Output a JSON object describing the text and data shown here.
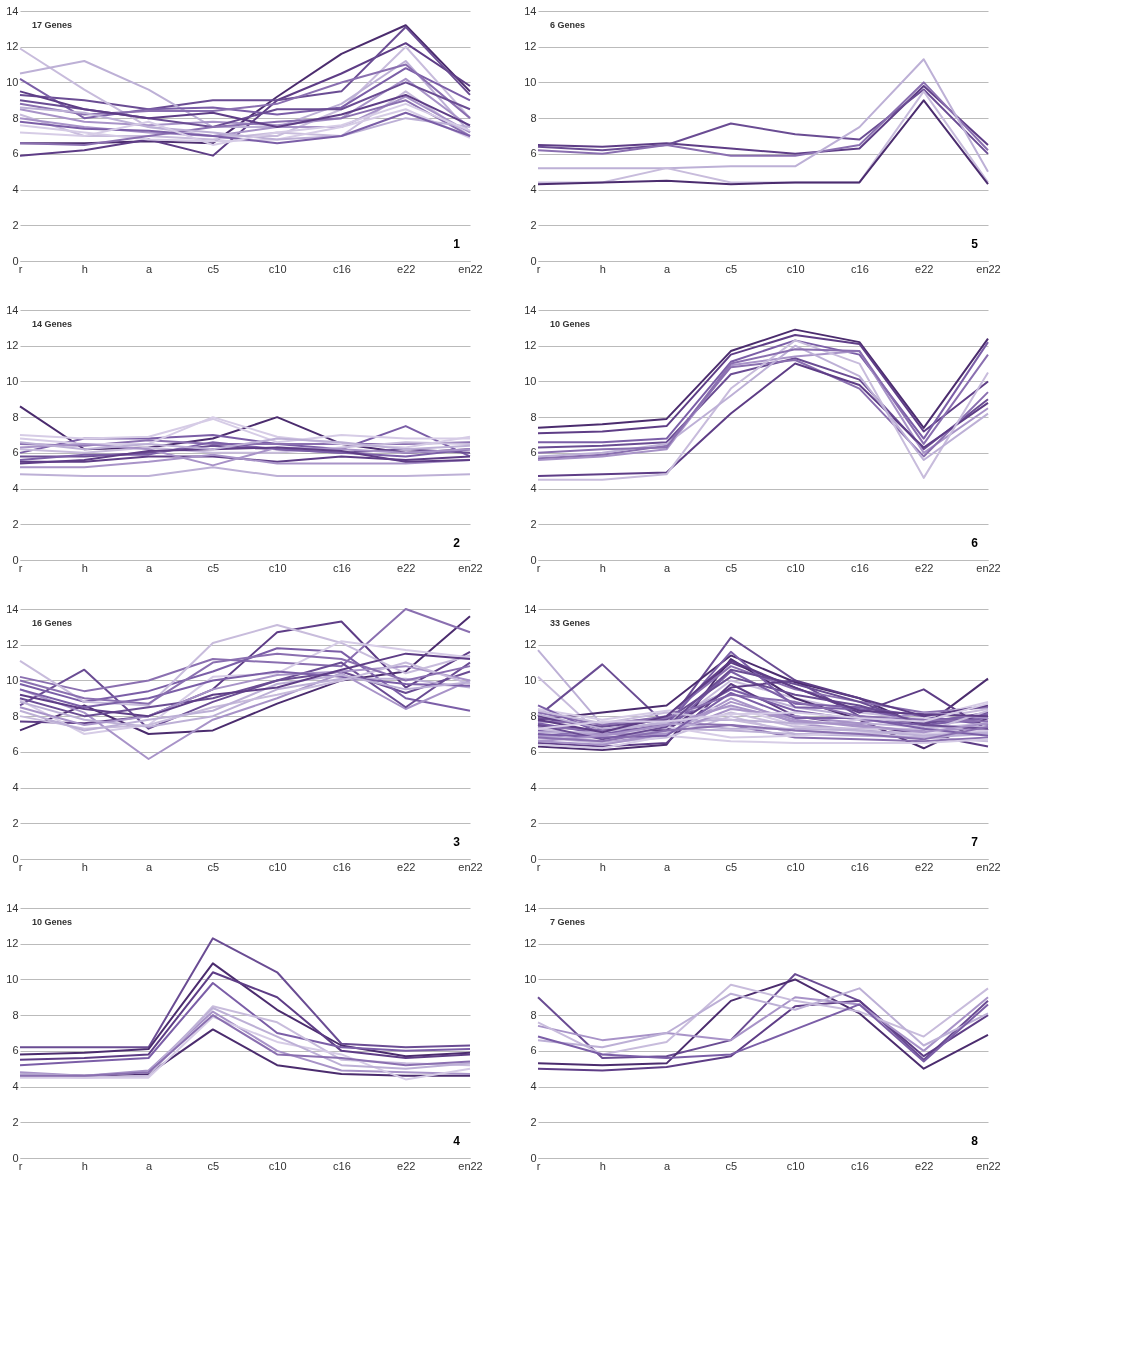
{
  "chart_data": [
    {
      "type": "line",
      "categories": [
        "r",
        "h",
        "a",
        "c5",
        "c10",
        "c16",
        "e22",
        "en22"
      ],
      "ylim": [
        0,
        14
      ],
      "yticks": [
        0,
        2,
        4,
        6,
        8,
        10,
        12,
        14
      ],
      "grid": "y",
      "legend": false,
      "annotations": [
        "17 Genes",
        "1"
      ],
      "series": [
        {
          "color": "#4b2c6e",
          "values": [
            6.6,
            6.6,
            6.7,
            6.6,
            9.2,
            11.6,
            13.2,
            9.5
          ]
        },
        {
          "color": "#5e3d86",
          "values": [
            5.9,
            6.2,
            6.8,
            5.9,
            9.0,
            10.5,
            12.2,
            9.8
          ]
        },
        {
          "color": "#6a4c93",
          "values": [
            9.3,
            9.0,
            8.5,
            9.0,
            9.0,
            9.5,
            13.1,
            9.3
          ]
        },
        {
          "color": "#c8bcdc",
          "values": [
            11.9,
            9.6,
            7.5,
            7.0,
            7.0,
            8.5,
            12.0,
            8.0
          ]
        },
        {
          "color": "#bdb0d6",
          "values": [
            10.5,
            11.2,
            9.6,
            7.5,
            7.5,
            8.8,
            11.2,
            7.2
          ]
        },
        {
          "color": "#7b5ea7",
          "values": [
            10.2,
            8.0,
            8.5,
            8.6,
            8.2,
            8.6,
            10.8,
            9.0
          ]
        },
        {
          "color": "#8a6fb0",
          "values": [
            8.8,
            8.2,
            8.4,
            8.4,
            8.8,
            10.0,
            11.0,
            8.0
          ]
        },
        {
          "color": "#a893c8",
          "values": [
            8.5,
            7.8,
            7.6,
            7.8,
            7.6,
            8.0,
            10.2,
            7.5
          ]
        },
        {
          "color": "#c8bcdc",
          "values": [
            8.2,
            7.0,
            7.0,
            6.8,
            7.2,
            7.0,
            9.5,
            7.0
          ]
        },
        {
          "color": "#6a4c93",
          "values": [
            9.0,
            8.5,
            8.0,
            7.5,
            8.5,
            8.5,
            10.0,
            8.5
          ]
        },
        {
          "color": "#a893c8",
          "values": [
            8.0,
            7.5,
            7.2,
            7.0,
            7.5,
            7.5,
            9.2,
            7.2
          ]
        },
        {
          "color": "#d6cce6",
          "values": [
            7.6,
            7.2,
            6.8,
            6.7,
            6.8,
            7.5,
            8.5,
            6.9
          ]
        },
        {
          "color": "#8a6fb0",
          "values": [
            6.6,
            6.5,
            7.0,
            7.5,
            7.8,
            8.0,
            9.0,
            7.0
          ]
        },
        {
          "color": "#bdb0d6",
          "values": [
            8.6,
            8.3,
            7.5,
            7.2,
            6.8,
            7.0,
            8.0,
            7.5
          ]
        },
        {
          "color": "#7b5ea7",
          "values": [
            7.8,
            7.4,
            7.3,
            7.0,
            6.6,
            7.0,
            8.3,
            7.0
          ]
        },
        {
          "color": "#5e3d86",
          "values": [
            9.5,
            8.5,
            8.0,
            8.3,
            7.5,
            8.2,
            9.3,
            7.6
          ]
        },
        {
          "color": "#d6cce6",
          "values": [
            7.2,
            7.0,
            7.8,
            6.5,
            7.2,
            7.6,
            8.8,
            7.3
          ]
        }
      ]
    },
    {
      "type": "line",
      "categories": [
        "r",
        "h",
        "a",
        "c5",
        "c10",
        "c16",
        "e22",
        "en22"
      ],
      "ylim": [
        0,
        14
      ],
      "yticks": [
        0,
        2,
        4,
        6,
        8,
        10,
        12,
        14
      ],
      "grid": "y",
      "legend": false,
      "annotations": [
        "6 Genes",
        "5"
      ],
      "series": [
        {
          "color": "#5e3d86",
          "values": [
            6.5,
            6.4,
            6.6,
            6.3,
            6.0,
            6.3,
            9.8,
            6.5
          ]
        },
        {
          "color": "#6a4c93",
          "values": [
            6.4,
            6.2,
            6.5,
            7.7,
            7.1,
            6.8,
            9.6,
            6.0
          ]
        },
        {
          "color": "#8a6fb0",
          "values": [
            6.2,
            6.0,
            6.5,
            5.9,
            5.9,
            6.5,
            10.0,
            6.2
          ]
        },
        {
          "color": "#bdb0d6",
          "values": [
            5.2,
            5.2,
            5.2,
            5.3,
            5.3,
            7.5,
            11.3,
            5.0
          ]
        },
        {
          "color": "#c8bcdc",
          "values": [
            4.4,
            4.4,
            5.2,
            4.4,
            4.4,
            4.4,
            9.5,
            4.4
          ]
        },
        {
          "color": "#4b2c6e",
          "values": [
            4.3,
            4.4,
            4.5,
            4.3,
            4.4,
            4.4,
            9.0,
            4.3
          ]
        }
      ]
    },
    {
      "type": "line",
      "categories": [
        "r",
        "h",
        "a",
        "c5",
        "c10",
        "c16",
        "e22",
        "en22"
      ],
      "ylim": [
        0,
        14
      ],
      "yticks": [
        0,
        2,
        4,
        6,
        8,
        10,
        12,
        14
      ],
      "grid": "y",
      "legend": false,
      "annotations": [
        "14 Genes",
        "2"
      ],
      "series": [
        {
          "color": "#4b2c6e",
          "values": [
            8.6,
            6.2,
            6.3,
            6.8,
            8.0,
            6.5,
            6.0,
            6.2
          ]
        },
        {
          "color": "#7b5ea7",
          "values": [
            6.0,
            6.8,
            6.8,
            7.0,
            6.5,
            6.2,
            7.5,
            5.8
          ]
        },
        {
          "color": "#5e3d86",
          "values": [
            5.5,
            5.5,
            5.8,
            5.8,
            5.5,
            5.8,
            5.6,
            5.8
          ]
        },
        {
          "color": "#d6cce6",
          "values": [
            7.0,
            6.8,
            6.9,
            7.9,
            6.6,
            7.0,
            6.8,
            6.8
          ]
        },
        {
          "color": "#bdb0d6",
          "values": [
            4.8,
            4.7,
            4.7,
            5.2,
            4.7,
            4.7,
            4.7,
            4.8
          ]
        },
        {
          "color": "#a893c8",
          "values": [
            5.2,
            5.2,
            5.5,
            5.9,
            5.4,
            5.4,
            5.4,
            5.6
          ]
        },
        {
          "color": "#8a6fb0",
          "values": [
            6.5,
            6.4,
            6.7,
            6.5,
            6.5,
            6.5,
            6.5,
            6.6
          ]
        },
        {
          "color": "#6a4c93",
          "values": [
            5.8,
            5.8,
            6.0,
            6.4,
            6.2,
            6.0,
            6.2,
            6.0
          ]
        },
        {
          "color": "#c8bcdc",
          "values": [
            6.2,
            6.0,
            6.3,
            6.0,
            6.0,
            6.3,
            6.6,
            6.5
          ]
        },
        {
          "color": "#d6cce6",
          "values": [
            6.8,
            6.5,
            6.5,
            8.0,
            6.9,
            6.5,
            6.3,
            6.9
          ]
        },
        {
          "color": "#7b5ea7",
          "values": [
            5.6,
            5.9,
            5.9,
            6.6,
            6.2,
            6.0,
            5.8,
            6.2
          ]
        },
        {
          "color": "#a893c8",
          "values": [
            6.3,
            6.5,
            6.2,
            5.3,
            6.3,
            6.2,
            6.0,
            6.2
          ]
        },
        {
          "color": "#5e3d86",
          "values": [
            5.4,
            5.6,
            6.1,
            6.2,
            6.3,
            6.1,
            5.5,
            5.6
          ]
        },
        {
          "color": "#bdb0d6",
          "values": [
            6.6,
            6.2,
            6.5,
            6.2,
            6.8,
            6.6,
            6.2,
            6.4
          ]
        }
      ]
    },
    {
      "type": "line",
      "categories": [
        "r",
        "h",
        "a",
        "c5",
        "c10",
        "c16",
        "e22",
        "en22"
      ],
      "ylim": [
        0,
        14
      ],
      "yticks": [
        0,
        2,
        4,
        6,
        8,
        10,
        12,
        14
      ],
      "grid": "y",
      "legend": false,
      "annotations": [
        "10 Genes",
        "6"
      ],
      "series": [
        {
          "color": "#4b2c6e",
          "values": [
            7.4,
            7.6,
            7.9,
            11.7,
            12.9,
            12.2,
            7.4,
            12.4
          ]
        },
        {
          "color": "#5e3d86",
          "values": [
            7.1,
            7.2,
            7.5,
            11.5,
            12.6,
            12.1,
            7.2,
            10.0
          ]
        },
        {
          "color": "#7b5ea7",
          "values": [
            6.6,
            6.6,
            6.8,
            11.1,
            12.3,
            11.5,
            6.8,
            12.2
          ]
        },
        {
          "color": "#6a4c93",
          "values": [
            6.3,
            6.4,
            6.6,
            10.4,
            11.3,
            10.1,
            6.2,
            9.0
          ]
        },
        {
          "color": "#a893c8",
          "values": [
            5.6,
            5.8,
            6.2,
            10.9,
            11.4,
            11.7,
            6.0,
            8.5
          ]
        },
        {
          "color": "#8a6fb0",
          "values": [
            5.7,
            5.9,
            6.4,
            10.8,
            11.2,
            9.6,
            5.8,
            9.4
          ]
        },
        {
          "color": "#5e3d86",
          "values": [
            4.7,
            4.8,
            4.9,
            8.2,
            11.0,
            9.8,
            6.3,
            8.8
          ]
        },
        {
          "color": "#c8bcdc",
          "values": [
            4.5,
            4.5,
            4.8,
            9.6,
            12.3,
            11.0,
            4.6,
            10.5
          ]
        },
        {
          "color": "#bdb0d6",
          "values": [
            5.8,
            6.0,
            6.5,
            9.2,
            12.0,
            10.3,
            5.6,
            8.2
          ]
        },
        {
          "color": "#8a6fb0",
          "values": [
            6.0,
            6.2,
            6.3,
            11.0,
            11.8,
            11.7,
            6.5,
            11.5
          ]
        }
      ]
    },
    {
      "type": "line",
      "categories": [
        "r",
        "h",
        "a",
        "c5",
        "c10",
        "c16",
        "e22",
        "en22"
      ],
      "ylim": [
        0,
        14
      ],
      "yticks": [
        0,
        2,
        4,
        6,
        8,
        10,
        12,
        14
      ],
      "grid": "y",
      "legend": false,
      "annotations": [
        "16 Genes",
        "3"
      ],
      "series": [
        {
          "color": "#4b2c6e",
          "values": [
            7.2,
            8.6,
            7.0,
            7.2,
            8.7,
            10.0,
            10.5,
            13.6
          ]
        },
        {
          "color": "#5e3d86",
          "values": [
            7.7,
            7.6,
            8.0,
            9.5,
            12.7,
            13.3,
            9.6,
            11.6
          ]
        },
        {
          "color": "#6a4c93",
          "values": [
            8.6,
            10.6,
            7.3,
            8.8,
            10.0,
            10.5,
            9.3,
            10.5
          ]
        },
        {
          "color": "#8a6fb0",
          "values": [
            10.2,
            9.4,
            10.0,
            11.2,
            11.0,
            10.8,
            14.0,
            12.7
          ]
        },
        {
          "color": "#7b5ea7",
          "values": [
            9.8,
            8.8,
            9.4,
            10.5,
            11.8,
            11.6,
            9.0,
            8.3
          ]
        },
        {
          "color": "#c8bcdc",
          "values": [
            11.1,
            8.8,
            8.6,
            12.1,
            13.1,
            12.1,
            10.4,
            11.4
          ]
        },
        {
          "color": "#d6cce6",
          "values": [
            8.9,
            7.0,
            7.5,
            10.2,
            10.4,
            12.2,
            11.7,
            11.3
          ]
        },
        {
          "color": "#a893c8",
          "values": [
            9.5,
            8.2,
            5.6,
            7.8,
            9.0,
            10.4,
            8.4,
            10.0
          ]
        },
        {
          "color": "#bdb0d6",
          "values": [
            8.8,
            7.8,
            7.4,
            8.0,
            9.5,
            10.1,
            10.1,
            9.6
          ]
        },
        {
          "color": "#6a4c93",
          "values": [
            9.0,
            8.0,
            8.5,
            9.0,
            10.0,
            11.0,
            8.5,
            11.0
          ]
        },
        {
          "color": "#a893c8",
          "values": [
            8.5,
            7.5,
            8.0,
            9.5,
            10.3,
            10.5,
            10.8,
            10.0
          ]
        },
        {
          "color": "#7b5ea7",
          "values": [
            9.5,
            8.5,
            9.0,
            10.0,
            10.5,
            10.2,
            9.8,
            9.7
          ]
        },
        {
          "color": "#c8bcdc",
          "values": [
            8.0,
            7.3,
            7.5,
            8.5,
            9.2,
            10.0,
            11.0,
            9.8
          ]
        },
        {
          "color": "#8a6fb0",
          "values": [
            10.0,
            9.0,
            8.7,
            11.0,
            11.5,
            11.2,
            10.0,
            10.8
          ]
        },
        {
          "color": "#bdb0d6",
          "values": [
            8.3,
            7.2,
            7.8,
            8.3,
            9.8,
            10.3,
            9.5,
            9.9
          ]
        },
        {
          "color": "#5e3d86",
          "values": [
            9.2,
            8.4,
            8.0,
            9.2,
            9.6,
            10.6,
            11.5,
            11.2
          ]
        }
      ]
    },
    {
      "type": "line",
      "categories": [
        "r",
        "h",
        "a",
        "c5",
        "c10",
        "c16",
        "e22",
        "en22"
      ],
      "ylim": [
        0,
        14
      ],
      "yticks": [
        0,
        2,
        4,
        6,
        8,
        10,
        12,
        14
      ],
      "grid": "y",
      "legend": false,
      "annotations": [
        "33 Genes",
        "7"
      ],
      "series": [
        {
          "color": "#bdb0d6",
          "values": [
            11.7,
            7.5,
            7.8,
            9.5,
            8.5,
            8.0,
            7.5,
            7.8
          ]
        },
        {
          "color": "#c8bcdc",
          "values": [
            10.2,
            6.9,
            7.3,
            10.0,
            9.0,
            8.2,
            7.8,
            8.4
          ]
        },
        {
          "color": "#6a4c93",
          "values": [
            8.0,
            10.9,
            7.5,
            12.4,
            10.0,
            8.0,
            7.6,
            8.0
          ]
        },
        {
          "color": "#4b2c6e",
          "values": [
            7.8,
            8.2,
            8.6,
            11.4,
            9.9,
            9.0,
            7.4,
            10.1
          ]
        },
        {
          "color": "#5e3d86",
          "values": [
            7.5,
            7.2,
            7.9,
            11.0,
            9.6,
            8.2,
            9.5,
            7.2
          ]
        },
        {
          "color": "#4b2c6e",
          "values": [
            6.3,
            6.1,
            6.4,
            11.2,
            9.0,
            7.8,
            6.2,
            7.9
          ]
        },
        {
          "color": "#5e3d86",
          "values": [
            6.5,
            6.3,
            6.5,
            9.8,
            8.0,
            7.5,
            7.0,
            6.3
          ]
        },
        {
          "color": "#7b5ea7",
          "values": [
            7.2,
            6.8,
            7.2,
            10.5,
            8.7,
            8.5,
            8.0,
            7.5
          ]
        },
        {
          "color": "#8a6fb0",
          "values": [
            8.2,
            7.5,
            8.0,
            10.8,
            9.5,
            8.8,
            8.2,
            8.5
          ]
        },
        {
          "color": "#a893c8",
          "values": [
            7.0,
            6.5,
            7.0,
            9.0,
            7.6,
            7.2,
            7.0,
            7.0
          ]
        },
        {
          "color": "#c8bcdc",
          "values": [
            6.8,
            6.5,
            6.8,
            8.0,
            7.0,
            7.0,
            6.8,
            6.6
          ]
        },
        {
          "color": "#7b5ea7",
          "values": [
            7.6,
            7.0,
            7.5,
            9.5,
            8.3,
            7.8,
            7.5,
            7.9
          ]
        },
        {
          "color": "#d6cce6",
          "values": [
            8.4,
            7.8,
            8.3,
            8.5,
            7.5,
            7.8,
            7.9,
            8.8
          ]
        },
        {
          "color": "#8a6fb0",
          "values": [
            7.4,
            7.2,
            7.6,
            7.5,
            6.8,
            6.7,
            6.6,
            6.8
          ]
        },
        {
          "color": "#bdb0d6",
          "values": [
            6.9,
            6.6,
            7.3,
            7.2,
            7.0,
            6.9,
            6.8,
            7.0
          ]
        },
        {
          "color": "#6a4c93",
          "values": [
            7.9,
            7.4,
            7.8,
            10.2,
            9.2,
            8.6,
            7.6,
            8.2
          ]
        },
        {
          "color": "#a893c8",
          "values": [
            6.6,
            6.4,
            7.0,
            8.8,
            7.8,
            7.4,
            7.2,
            7.3
          ]
        },
        {
          "color": "#5e3d86",
          "values": [
            8.0,
            7.3,
            7.2,
            9.6,
            10.0,
            9.0,
            8.0,
            8.6
          ]
        },
        {
          "color": "#c8bcdc",
          "values": [
            7.3,
            6.9,
            7.1,
            8.2,
            7.4,
            7.3,
            7.3,
            7.6
          ]
        },
        {
          "color": "#d6cce6",
          "values": [
            6.7,
            6.8,
            7.4,
            6.8,
            6.9,
            7.1,
            7.0,
            7.2
          ]
        },
        {
          "color": "#7b5ea7",
          "values": [
            8.6,
            7.0,
            7.5,
            11.6,
            8.5,
            8.4,
            7.7,
            8.1
          ]
        },
        {
          "color": "#bdb0d6",
          "values": [
            7.1,
            7.1,
            7.7,
            7.8,
            7.6,
            7.6,
            7.4,
            7.4
          ]
        },
        {
          "color": "#d6cce6",
          "values": [
            6.4,
            6.2,
            6.9,
            6.6,
            6.5,
            6.5,
            6.5,
            6.7
          ]
        },
        {
          "color": "#8a6fb0",
          "values": [
            7.7,
            7.6,
            7.9,
            9.2,
            8.8,
            8.0,
            7.8,
            7.7
          ]
        },
        {
          "color": "#c8bcdc",
          "values": [
            8.3,
            7.6,
            8.2,
            7.8,
            7.2,
            7.0,
            7.1,
            8.3
          ]
        },
        {
          "color": "#a893c8",
          "values": [
            6.9,
            7.0,
            7.0,
            8.4,
            8.0,
            7.6,
            8.2,
            7.9
          ]
        },
        {
          "color": "#6a4c93",
          "values": [
            7.5,
            6.7,
            7.4,
            10.6,
            9.8,
            8.8,
            7.5,
            7.3
          ]
        },
        {
          "color": "#bdb0d6",
          "values": [
            8.1,
            7.3,
            7.6,
            7.3,
            7.3,
            7.2,
            6.9,
            7.1
          ]
        },
        {
          "color": "#7b5ea7",
          "values": [
            7.0,
            6.8,
            6.9,
            9.3,
            7.9,
            7.9,
            7.3,
            6.9
          ]
        },
        {
          "color": "#a893c8",
          "values": [
            6.6,
            6.9,
            7.5,
            8.6,
            7.7,
            7.5,
            7.1,
            7.6
          ]
        },
        {
          "color": "#5e3d86",
          "values": [
            7.8,
            7.1,
            8.0,
            11.1,
            9.6,
            8.3,
            8.1,
            8.0
          ]
        },
        {
          "color": "#d6cce6",
          "values": [
            7.3,
            7.7,
            7.7,
            8.1,
            8.2,
            7.9,
            7.7,
            8.7
          ]
        },
        {
          "color": "#8a6fb0",
          "values": [
            6.8,
            6.6,
            7.2,
            7.5,
            7.2,
            7.0,
            6.7,
            7.4
          ]
        }
      ]
    },
    {
      "type": "line",
      "categories": [
        "r",
        "h",
        "a",
        "c5",
        "c10",
        "c16",
        "e22",
        "en22"
      ],
      "ylim": [
        0,
        14
      ],
      "yticks": [
        0,
        2,
        4,
        6,
        8,
        10,
        12,
        14
      ],
      "grid": "y",
      "legend": false,
      "annotations": [
        "10 Genes",
        "4"
      ],
      "series": [
        {
          "color": "#6a4c93",
          "values": [
            6.2,
            6.2,
            6.2,
            12.3,
            10.4,
            6.4,
            6.2,
            6.3
          ]
        },
        {
          "color": "#4b2c6e",
          "values": [
            5.8,
            5.9,
            6.1,
            10.9,
            8.3,
            6.3,
            5.7,
            5.9
          ]
        },
        {
          "color": "#5e3d86",
          "values": [
            5.5,
            5.6,
            5.8,
            10.4,
            9.0,
            6.0,
            5.6,
            5.8
          ]
        },
        {
          "color": "#7b5ea7",
          "values": [
            5.2,
            5.4,
            5.6,
            9.8,
            7.0,
            6.2,
            6.0,
            6.1
          ]
        },
        {
          "color": "#4b2c6e",
          "values": [
            4.7,
            4.6,
            4.7,
            7.2,
            5.2,
            4.7,
            4.6,
            4.6
          ]
        },
        {
          "color": "#a893c8",
          "values": [
            4.8,
            4.6,
            4.9,
            8.2,
            6.0,
            4.9,
            4.8,
            4.7
          ]
        },
        {
          "color": "#c8bcdc",
          "values": [
            4.6,
            4.5,
            4.6,
            8.5,
            7.6,
            5.5,
            5.3,
            5.2
          ]
        },
        {
          "color": "#d6cce6",
          "values": [
            4.5,
            4.5,
            4.5,
            7.9,
            6.5,
            5.8,
            4.4,
            5.0
          ]
        },
        {
          "color": "#bdb0d6",
          "values": [
            4.7,
            4.6,
            4.8,
            8.4,
            6.8,
            5.2,
            5.0,
            5.3
          ]
        },
        {
          "color": "#8a6fb0",
          "values": [
            4.6,
            4.6,
            4.8,
            8.0,
            5.8,
            5.6,
            5.2,
            5.4
          ]
        }
      ]
    },
    {
      "type": "line",
      "categories": [
        "r",
        "h",
        "a",
        "c5",
        "c10",
        "c16",
        "e22",
        "en22"
      ],
      "ylim": [
        0,
        14
      ],
      "yticks": [
        0,
        2,
        4,
        6,
        8,
        10,
        12,
        14
      ],
      "grid": "y",
      "legend": false,
      "annotations": [
        "7 Genes",
        "8"
      ],
      "series": [
        {
          "color": "#6a4c93",
          "values": [
            9.0,
            5.6,
            5.7,
            6.6,
            10.3,
            8.8,
            5.5,
            8.8
          ]
        },
        {
          "color": "#4b2c6e",
          "values": [
            5.3,
            5.2,
            5.3,
            8.8,
            10.0,
            8.1,
            5.0,
            6.9
          ]
        },
        {
          "color": "#5e3d86",
          "values": [
            5.0,
            4.9,
            5.1,
            5.7,
            8.5,
            8.8,
            5.7,
            8.0
          ]
        },
        {
          "color": "#a893c8",
          "values": [
            7.4,
            6.6,
            7.0,
            6.6,
            9.0,
            8.6,
            6.0,
            9.0
          ]
        },
        {
          "color": "#c8bcdc",
          "values": [
            7.6,
            5.8,
            6.5,
            9.7,
            8.8,
            8.2,
            6.8,
            9.5
          ]
        },
        {
          "color": "#bdb0d6",
          "values": [
            6.6,
            6.2,
            7.0,
            9.2,
            8.3,
            9.5,
            6.3,
            8.1
          ]
        },
        {
          "color": "#7b5ea7",
          "values": [
            6.8,
            5.8,
            5.6,
            5.8,
            7.2,
            8.6,
            5.4,
            8.6
          ]
        }
      ]
    }
  ]
}
